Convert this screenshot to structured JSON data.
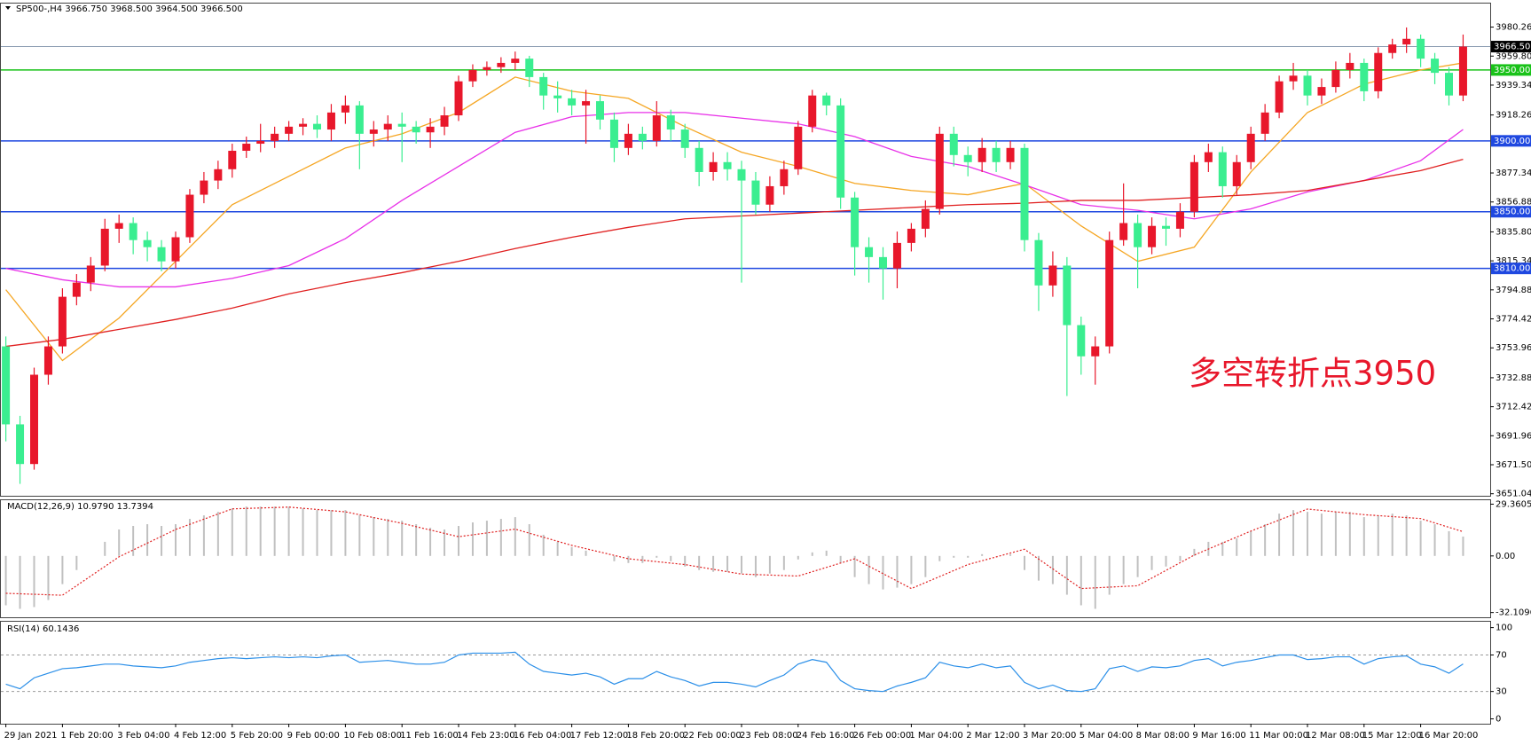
{
  "chart_data": [
    {
      "type": "candlestick",
      "title": "SP500-,H4  3966.750 3968.500 3964.500 3966.500",
      "categories": [
        "29 Jan 2021",
        null,
        null,
        null,
        "1 Feb 20:00",
        null,
        null,
        null,
        "3 Feb 04:00",
        null,
        null,
        null,
        "4 Feb 12:00",
        null,
        null,
        null,
        "5 Feb 20:00",
        null,
        null,
        null,
        "9 Feb 00:00",
        null,
        null,
        null,
        "10 Feb 08:00",
        null,
        null,
        null,
        "11 Feb 16:00",
        null,
        null,
        null,
        "14 Feb 23:00",
        null,
        null,
        null,
        "16 Feb 04:00",
        null,
        null,
        null,
        "17 Feb 12:00",
        null,
        null,
        null,
        "18 Feb 20:00",
        null,
        null,
        null,
        "22 Feb 00:00",
        null,
        null,
        null,
        "23 Feb 08:00",
        null,
        null,
        null,
        "24 Feb 16:00",
        null,
        null,
        null,
        "26 Feb 00:00",
        null,
        null,
        null,
        "1 Mar 04:00",
        null,
        null,
        null,
        "2 Mar 12:00",
        null,
        null,
        null,
        "3 Mar 20:00",
        null,
        null,
        null,
        "5 Mar 04:00",
        null,
        null,
        null,
        "8 Mar 08:00",
        null,
        null,
        null,
        "9 Mar 16:00",
        null,
        null,
        null,
        "11 Mar 00:00",
        null,
        null,
        null,
        "12 Mar 08:00",
        null,
        null,
        null,
        "15 Mar 12:00",
        null,
        null,
        null,
        "16 Mar 20:00",
        null,
        null,
        null
      ],
      "open": [
        3755,
        3700,
        3672,
        3735,
        3755,
        3790,
        3800,
        3812,
        3838,
        3842,
        3830,
        3825,
        3815,
        3832,
        3862,
        3872,
        3880,
        3893,
        3898,
        3900,
        3905,
        3910,
        3912,
        3908,
        3920,
        3925,
        3905,
        3908,
        3912,
        3910,
        3906,
        3910,
        3918,
        3942,
        3950,
        3952,
        3955,
        3958,
        3945,
        3932,
        3930,
        3925,
        3928,
        3915,
        3895,
        3905,
        3900,
        3918,
        3908,
        3895,
        3878,
        3885,
        3880,
        3872,
        3855,
        3868,
        3880,
        3910,
        3932,
        3925,
        3860,
        3825,
        3818,
        3810,
        3828,
        3838,
        3852,
        3905,
        3890,
        3885,
        3895,
        3885,
        3895,
        3830,
        3798,
        3812,
        3770,
        3748,
        3755,
        3830,
        3842,
        3825,
        3840,
        3838,
        3850,
        3885,
        3892,
        3868,
        3885,
        3905,
        3920,
        3942,
        3946,
        3932,
        3938,
        3950,
        3955,
        3935,
        3962,
        3968,
        3972,
        3958,
        3948,
        3932
      ],
      "high": [
        3762,
        3706,
        3740,
        3762,
        3796,
        3806,
        3818,
        3845,
        3848,
        3846,
        3836,
        3830,
        3836,
        3866,
        3878,
        3886,
        3898,
        3903,
        3912,
        3910,
        3914,
        3916,
        3918,
        3926,
        3932,
        3928,
        3914,
        3918,
        3920,
        3914,
        3916,
        3924,
        3946,
        3954,
        3956,
        3959,
        3963,
        3960,
        3948,
        3942,
        3936,
        3936,
        3932,
        3920,
        3912,
        3910,
        3928,
        3922,
        3912,
        3900,
        3892,
        3892,
        3886,
        3878,
        3875,
        3886,
        3914,
        3936,
        3934,
        3930,
        3864,
        3832,
        3825,
        3836,
        3842,
        3858,
        3910,
        3910,
        3896,
        3902,
        3900,
        3900,
        3898,
        3835,
        3822,
        3818,
        3776,
        3762,
        3836,
        3870,
        3848,
        3846,
        3846,
        3856,
        3890,
        3898,
        3896,
        3890,
        3910,
        3926,
        3946,
        3955,
        3950,
        3944,
        3956,
        3962,
        3958,
        3966,
        3972,
        3980,
        3975,
        3962,
        3952,
        3975
      ],
      "low": [
        3688,
        3658,
        3668,
        3728,
        3750,
        3784,
        3794,
        3808,
        3828,
        3820,
        3815,
        3808,
        3810,
        3828,
        3856,
        3866,
        3874,
        3888,
        3892,
        3895,
        3900,
        3904,
        3902,
        3900,
        3912,
        3880,
        3896,
        3900,
        3885,
        3898,
        3895,
        3904,
        3914,
        3938,
        3946,
        3948,
        3950,
        3938,
        3922,
        3920,
        3918,
        3898,
        3908,
        3885,
        3890,
        3894,
        3896,
        3900,
        3888,
        3868,
        3872,
        3872,
        3800,
        3848,
        3850,
        3862,
        3876,
        3906,
        3918,
        3852,
        3805,
        3800,
        3788,
        3796,
        3822,
        3832,
        3848,
        3882,
        3875,
        3878,
        3878,
        3880,
        3822,
        3780,
        3790,
        3720,
        3735,
        3728,
        3750,
        3826,
        3796,
        3820,
        3826,
        3832,
        3846,
        3878,
        3860,
        3862,
        3880,
        3900,
        3916,
        3936,
        3925,
        3926,
        3934,
        3944,
        3928,
        3930,
        3958,
        3962,
        3952,
        3940,
        3925,
        3928
      ],
      "close": [
        3700,
        3672,
        3735,
        3755,
        3790,
        3800,
        3812,
        3838,
        3842,
        3830,
        3825,
        3815,
        3832,
        3862,
        3872,
        3880,
        3893,
        3898,
        3900,
        3905,
        3910,
        3912,
        3908,
        3920,
        3925,
        3905,
        3908,
        3912,
        3910,
        3906,
        3910,
        3918,
        3942,
        3950,
        3952,
        3955,
        3958,
        3945,
        3932,
        3930,
        3925,
        3928,
        3915,
        3895,
        3905,
        3900,
        3918,
        3908,
        3895,
        3878,
        3885,
        3880,
        3872,
        3855,
        3868,
        3880,
        3910,
        3932,
        3925,
        3860,
        3825,
        3818,
        3810,
        3828,
        3838,
        3852,
        3905,
        3890,
        3885,
        3895,
        3885,
        3895,
        3830,
        3798,
        3812,
        3770,
        3748,
        3755,
        3830,
        3842,
        3825,
        3840,
        3838,
        3850,
        3885,
        3892,
        3868,
        3885,
        3905,
        3920,
        3942,
        3946,
        3932,
        3938,
        3950,
        3955,
        3935,
        3962,
        3968,
        3972,
        3958,
        3948,
        3932,
        3966.5
      ],
      "up_color": "#e8172b",
      "down_color": "#3aee90",
      "ylim": [
        3649.6,
        3997.5
      ],
      "yticks": [
        {
          "value": 3980.26,
          "label": "3980.260"
        },
        {
          "value": 3959.8,
          "label": "3959.800"
        },
        {
          "value": 3939.34,
          "label": "3939.340"
        },
        {
          "value": 3918.26,
          "label": "3918.260"
        },
        {
          "value": 3877.34,
          "label": "3877.340"
        },
        {
          "value": 3856.88,
          "label": "3856.880"
        },
        {
          "value": 3835.8,
          "label": "3835.800"
        },
        {
          "value": 3815.34,
          "label": "3815.340"
        },
        {
          "value": 3794.88,
          "label": "3794.880"
        },
        {
          "value": 3774.42,
          "label": "3774.420"
        },
        {
          "value": 3753.96,
          "label": "3753.960"
        },
        {
          "value": 3732.88,
          "label": "3732.880"
        },
        {
          "value": 3712.42,
          "label": "3712.420"
        },
        {
          "value": 3691.96,
          "label": "3691.960"
        },
        {
          "value": 3671.5,
          "label": "3671.500"
        },
        {
          "value": 3651.04,
          "label": "3651.040"
        }
      ],
      "moving_averages": {
        "x": [
          0,
          4,
          8,
          12,
          16,
          20,
          24,
          28,
          32,
          36,
          40,
          44,
          48,
          52,
          56,
          60,
          64,
          68,
          72,
          76,
          80,
          84,
          88,
          92,
          96,
          100,
          103
        ],
        "series": [
          {
            "color": "#f5a623",
            "values": [
              3795,
              3745,
              3775,
              3815,
              3855,
              3875,
              3895,
              3905,
              3920,
              3945,
              3935,
              3930,
              3910,
              3892,
              3882,
              3870,
              3865,
              3862,
              3870,
              3840,
              3815,
              3825,
              3878,
              3920,
              3940,
              3950,
              3955
            ]
          },
          {
            "color": "#e830e8",
            "values": [
              3810,
              3802,
              3797,
              3797,
              3803,
              3812,
              3831,
              3858,
              3882,
              3906,
              3917,
              3920,
              3920,
              3916,
              3912,
              3903,
              3889,
              3882,
              3869,
              3855,
              3851,
              3845,
              3852,
              3864,
              3872,
              3886,
              3908
            ]
          },
          {
            "color": "#e02020",
            "values": [
              3755,
              3760,
              3767,
              3774,
              3782,
              3792,
              3800,
              3807,
              3815,
              3824,
              3832,
              3839,
              3845,
              3847,
              3849,
              3851,
              3853,
              3855,
              3856,
              3858,
              3858,
              3860,
              3862,
              3865,
              3872,
              3879,
              3887
            ]
          }
        ]
      },
      "levels": [
        {
          "value": 3966.5,
          "label": "3966.500",
          "color": "#8a9bb0",
          "label_color": "#000000"
        },
        {
          "value": 3950,
          "label": "3950.000",
          "color": "#19c219",
          "label_color": "#19c219"
        },
        {
          "value": 3900,
          "label": "3900.000",
          "color": "#1f48e0",
          "label_color": "#1f48e0"
        },
        {
          "value": 3850,
          "label": "3850.000",
          "color": "#1f48e0",
          "label_color": "#1f48e0"
        },
        {
          "value": 3810,
          "label": "3810.000",
          "color": "#1f48e0",
          "label_color": "#1f48e0"
        }
      ],
      "annotation": {
        "text": "多空转折点3950",
        "color": "#e8172b"
      }
    },
    {
      "type": "macd",
      "title": "MACD(12,26,9) 10.9790 13.7394",
      "values": [
        -28,
        -30,
        -29,
        -25,
        -16,
        -8,
        0,
        8,
        15,
        17,
        18,
        17,
        18,
        21,
        23,
        25,
        27,
        28,
        28,
        28,
        28,
        27,
        26,
        26,
        26,
        23,
        22,
        21,
        20,
        18,
        16,
        15,
        17,
        19,
        20,
        21,
        22,
        18,
        12,
        8,
        5,
        3,
        0,
        -3,
        -4,
        -4,
        -1,
        -3,
        -6,
        -8,
        -9,
        -9,
        -10,
        -12,
        -10,
        -8,
        -2,
        2,
        3,
        -4,
        -12,
        -16,
        -19,
        -18,
        -16,
        -12,
        -3,
        -1,
        -1,
        1,
        0,
        1,
        -8,
        -14,
        -16,
        -22,
        -28,
        -30,
        -22,
        -16,
        -12,
        -8,
        -6,
        -3,
        4,
        8,
        8,
        10,
        14,
        18,
        24,
        26,
        25,
        24,
        25,
        25,
        22,
        23,
        24,
        23,
        20,
        18,
        14,
        10.979
      ],
      "color": "#c0c0c0",
      "signal": {
        "x": [
          0,
          4,
          8,
          12,
          16,
          20,
          24,
          28,
          32,
          36,
          40,
          44,
          48,
          52,
          56,
          60,
          64,
          68,
          72,
          76,
          80,
          84,
          88,
          92,
          96,
          100,
          103
        ],
        "values": [
          -21.2,
          -22.3,
          -0.5,
          15,
          26.7,
          27.7,
          25,
          18.5,
          10.9,
          15.2,
          6,
          -1.6,
          -4.9,
          -10.3,
          -11.4,
          -1.6,
          -18.5,
          -4.9,
          3.8,
          -18.5,
          -16.9,
          0.5,
          14.1,
          26.6,
          23.4,
          21.2,
          13.7394
        ],
        "color": "#e02020"
      },
      "ylim": [
        -34.8,
        32.1
      ],
      "yticks": [
        29.3605,
        {
          "value": 0,
          "label": "0.00"
        },
        -32.1096
      ]
    },
    {
      "type": "line",
      "title": "RSI(14) 60.1436",
      "values": [
        38,
        33,
        45,
        50,
        55,
        56,
        58,
        60,
        60,
        58,
        57,
        56,
        58,
        62,
        64,
        66,
        67,
        66,
        67,
        68,
        67,
        68,
        67,
        69,
        70,
        62,
        63,
        64,
        62,
        60,
        60,
        62,
        70,
        72,
        72,
        72,
        73,
        60,
        52,
        50,
        48,
        50,
        46,
        38,
        44,
        44,
        52,
        46,
        42,
        36,
        40,
        40,
        38,
        35,
        42,
        48,
        60,
        65,
        62,
        42,
        33,
        31,
        30,
        36,
        40,
        45,
        62,
        58,
        56,
        60,
        56,
        58,
        40,
        33,
        37,
        31,
        30,
        33,
        55,
        58,
        52,
        57,
        56,
        58,
        64,
        66,
        58,
        62,
        64,
        67,
        70,
        70,
        65,
        66,
        68,
        68,
        60,
        66,
        68,
        69,
        60,
        57,
        50,
        60.1436
      ],
      "color": "#2b8fe8",
      "ylim": [
        -5.3,
        107.4
      ],
      "yticks": [
        100,
        70,
        30,
        0
      ],
      "levels": [
        70,
        30
      ]
    }
  ]
}
